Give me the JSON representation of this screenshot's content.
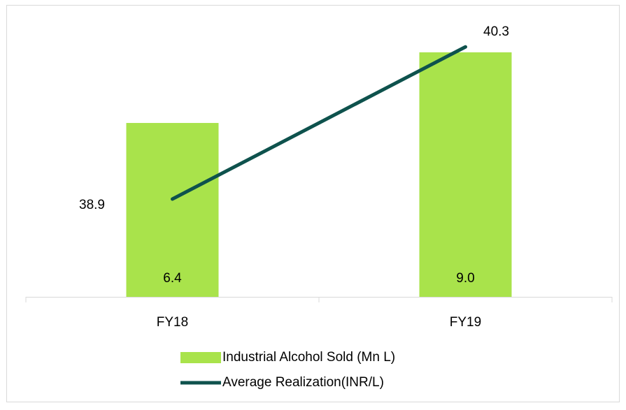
{
  "chart_data": {
    "type": "bar-line",
    "categories": [
      "FY18",
      "FY19"
    ],
    "series": [
      {
        "name": "Industrial Alcohol Sold (Mn L)",
        "type": "bar",
        "color": "#a9e34b",
        "values": [
          6.4,
          9.0
        ],
        "value_labels": [
          "6.4",
          "9.0"
        ]
      },
      {
        "name": "Average Realization(INR/L)",
        "type": "line",
        "axis": "y2",
        "color": "#0e524d",
        "values": [
          38.9,
          40.3
        ]
      }
    ],
    "ylim": [
      0,
      10
    ],
    "y2lim": [
      38,
      40.5
    ],
    "legend": "bottom"
  }
}
